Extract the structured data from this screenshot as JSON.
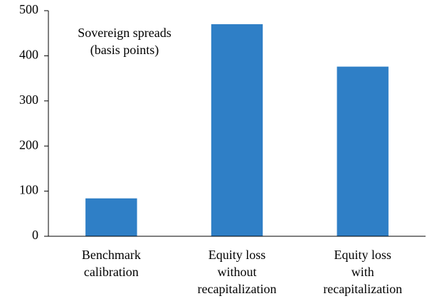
{
  "chart_data": {
    "type": "bar",
    "annotation": "Sovereign spreads\n(basis points)",
    "categories": [
      "Benchmark\ncalibration",
      "Equity loss\nwithout\nrecapitalization",
      "Equity loss with\nrecapitalization"
    ],
    "values": [
      84,
      470,
      376
    ],
    "color": "#2f7fc6",
    "ylim": [
      0,
      500
    ],
    "yticks": [
      0,
      100,
      200,
      300,
      400,
      500
    ],
    "grid": false
  }
}
